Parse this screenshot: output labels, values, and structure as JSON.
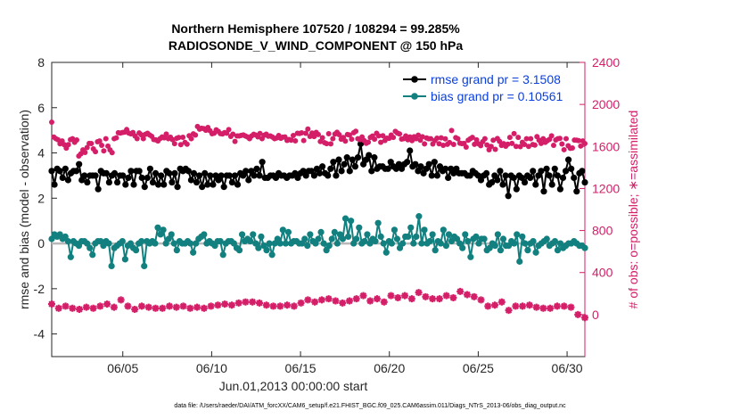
{
  "chart_data": {
    "type": "line",
    "title_line1": "Northern Hemisphere 107520 / 108294 = 99.285%",
    "title_line2": "RADIOSONDE_V_WIND_COMPONENT @ 150 hPa",
    "xlabel": "Jun.01,2013 00:00:00 start",
    "ylabel_left": "rmse and bias (model - observation)",
    "ylabel_right": "# of obs: o=possible; ∗=assimilated",
    "footnote": "data file: /Users/raeder/DAI/ATM_forcXX/CAM6_setup/f.e21.FHIST_BGC.f09_025.CAM6assim.011/Diags_NTrS_2013-06/obs_diag_output.nc",
    "x_ticks": [
      {
        "x": 5,
        "label": "06/05"
      },
      {
        "x": 10,
        "label": "06/10"
      },
      {
        "x": 15,
        "label": "06/15"
      },
      {
        "x": 20,
        "label": "06/20"
      },
      {
        "x": 25,
        "label": "06/25"
      },
      {
        "x": 30,
        "label": "06/30"
      }
    ],
    "y_left_ticks": [
      "8",
      "6",
      "4",
      "2",
      "0",
      "-2",
      "-4"
    ],
    "y_right_ticks": [
      "2400",
      "2000",
      "1600",
      "1200",
      "800",
      "400",
      "0"
    ],
    "xlim": [
      1.0,
      31.0
    ],
    "ylim_left": [
      -5,
      8
    ],
    "ylim_right": [
      -400,
      2400
    ],
    "zero_line": 0,
    "legend": [
      {
        "label": "rmse grand pr = 3.1508",
        "color": "#000000",
        "text_color": "#0a3fe0"
      },
      {
        "label": "bias grand pr = 0.10561",
        "color": "#138080",
        "text_color": "#0a3fe0"
      }
    ],
    "series": [
      {
        "name": "rmse",
        "axis": "left",
        "color": "#000000",
        "marker": "circle",
        "values": [
          3.2,
          2.6,
          3.3,
          3.2,
          2.9,
          3.3,
          2.8,
          3.1,
          3.2,
          3.2,
          3.5,
          2.8,
          3.0,
          2.7,
          3.0,
          3.0,
          3.0,
          2.4,
          3.2,
          3.1,
          3.1,
          2.7,
          3.0,
          3.1,
          2.7,
          3.0,
          3.0,
          2.6,
          2.9,
          3.2,
          2.6,
          3.2,
          3.2,
          2.9,
          2.5,
          2.9,
          3.3,
          2.7,
          3.1,
          2.6,
          3.0,
          2.6,
          3.2,
          3.1,
          2.7,
          3.1,
          2.5,
          3.3,
          3.2,
          3.3,
          3.2,
          2.8,
          3.1,
          2.7,
          3.0,
          2.5,
          3.1,
          2.6,
          3.0,
          2.6,
          3.0,
          2.8,
          3.0,
          2.5,
          3.0,
          3.0,
          2.7,
          3.0,
          2.6,
          3.1,
          3.0,
          3.2,
          2.8,
          3.2,
          3.0,
          3.3,
          3.0,
          3.6,
          2.9,
          2.9,
          3.0,
          3.0,
          2.9,
          3.1,
          3.0,
          3.0,
          2.9,
          3.0,
          3.0,
          3.1,
          2.9,
          3.1,
          3.2,
          3.0,
          3.2,
          3.2,
          3.0,
          3.3,
          3.1,
          3.4,
          3.1,
          3.0,
          3.3,
          3.6,
          3.0,
          3.7,
          3.2,
          3.5,
          3.8,
          3.2,
          3.7,
          3.4,
          3.8,
          4.4,
          3.5,
          3.7,
          3.9,
          3.2,
          3.8,
          3.3,
          3.4,
          3.4,
          3.3,
          3.3,
          3.6,
          3.4,
          3.3,
          3.5,
          3.3,
          3.5,
          3.6,
          4.1,
          3.4,
          3.5,
          3.2,
          3.4,
          3.1,
          3.3,
          3.5,
          3.0,
          3.6,
          3.0,
          3.4,
          3.2,
          3.3,
          2.9,
          3.3,
          3.1,
          3.3,
          3.1,
          3.1,
          3.1,
          3.0,
          3.0,
          3.2,
          3.1,
          3.0,
          2.8,
          3.0,
          3.1,
          2.6,
          2.7,
          3.0,
          2.8,
          3.2,
          2.6,
          3.0,
          2.1,
          3.0,
          2.9,
          2.4,
          3.0,
          2.9,
          2.7,
          3.0,
          2.9,
          3.2,
          2.6,
          3.0,
          3.2,
          2.3,
          3.3,
          3.0,
          2.6,
          3.3,
          3.0,
          2.4,
          2.9,
          3.2,
          3.7,
          3.3,
          2.9,
          2.3,
          3.1,
          3.2,
          2.7
        ]
      },
      {
        "name": "bias",
        "axis": "left",
        "color": "#138080",
        "marker": "circle",
        "values": [
          0.2,
          0.4,
          0.3,
          0.4,
          0.2,
          0.3,
          0.1,
          -0.6,
          0.1,
          0.0,
          -0.1,
          0.1,
          0.1,
          0.0,
          -0.2,
          -0.5,
          0.0,
          0.1,
          0.1,
          -0.1,
          0.1,
          0.0,
          -1.0,
          -0.2,
          -0.1,
          0.0,
          0.1,
          -0.7,
          -0.1,
          0.0,
          -0.2,
          -0.3,
          0.0,
          0.1,
          -1.0,
          0.1,
          0.0,
          0.1,
          0.0,
          0.7,
          0.4,
          0.6,
          0.0,
          0.2,
          0.4,
          0.0,
          -0.3,
          0.1,
          0.0,
          0.0,
          0.1,
          0.0,
          -0.4,
          0.0,
          0.2,
          0.3,
          0.4,
          0.0,
          0.1,
          0.0,
          -0.1,
          0.1,
          0.1,
          -0.5,
          0.0,
          0.1,
          0.1,
          0.0,
          -0.2,
          -0.3,
          0.4,
          0.1,
          0.2,
          0.1,
          0.4,
          0.0,
          -0.2,
          0.3,
          -0.1,
          -0.3,
          0.0,
          -0.5,
          0.0,
          0.2,
          0.0,
          0.6,
          0.0,
          0.5,
          0.0,
          0.1,
          0.1,
          0.0,
          0.0,
          0.2,
          -0.1,
          0.4,
          0.1,
          0.0,
          0.2,
          0.5,
          0.0,
          -0.3,
          -0.1,
          0.2,
          0.5,
          0.0,
          0.4,
          0.2,
          1.1,
          0.3,
          1.0,
          0.0,
          0.2,
          0.7,
          0.0,
          0.1,
          0.4,
          0.0,
          0.2,
          0.1,
          0.9,
          0.3,
          0.0,
          -0.4,
          0.1,
          0.0,
          0.6,
          0.2,
          -0.2,
          0.0,
          0.3,
          0.3,
          0.7,
          0.0,
          0.3,
          1.2,
          0.0,
          0.6,
          0.0,
          0.1,
          0.4,
          -0.3,
          0.1,
          0.0,
          0.6,
          -0.1,
          0.4,
          0.1,
          0.3,
          0.2,
          0.0,
          -0.2,
          0.4,
          0.1,
          -0.6,
          0.2,
          0.3,
          0.0,
          0.2,
          0.2,
          -0.3,
          -0.2,
          0.0,
          -0.1,
          0.4,
          -0.3,
          0.2,
          -0.1,
          -0.1,
          0.1,
          0.0,
          0.4,
          -0.8,
          0.3,
          0.0,
          -0.3,
          0.0,
          0.1,
          -0.4,
          -0.1,
          0.0,
          0.1,
          0.2,
          -0.1,
          0.0,
          0.1,
          -0.3,
          0.0,
          -0.2,
          -0.1,
          0.0,
          0.0,
          0.1,
          0.0,
          -0.1,
          -0.1,
          -0.2
        ]
      },
      {
        "name": "possible",
        "axis": "right",
        "color": "#d41e68",
        "marker": "circle",
        "values": [
          1831,
          1689,
          1674,
          1664,
          1626,
          1652,
          1617,
          1584,
          1617,
          1665,
          1674,
          1640,
          1662,
          1509,
          1530,
          1567,
          1543,
          1590,
          1629,
          1628,
          1577,
          1550,
          1645,
          1652,
          1611,
          1558,
          1674,
          1603,
          1567,
          1541,
          1674,
          1682,
          1731,
          1728,
          1733,
          1736,
          1761,
          1728,
          1720,
          1733,
          1700,
          1675,
          1729,
          1712,
          1674,
          1716,
          1725,
          1710,
          1697,
          1666,
          1663,
          1652,
          1674,
          1690,
          1682,
          1718,
          1674,
          1688,
          1665,
          1627,
          1678,
          1685,
          1617,
          1687,
          1639,
          1622,
          1702,
          1674,
          1720,
          1708,
          1790,
          1765,
          1773,
          1770,
          1754,
          1781,
          1750,
          1721,
          1727,
          1758,
          1744,
          1722,
          1719,
          1732,
          1727,
          1760,
          1696,
          1717,
          1648,
          1700,
          1700,
          1705,
          1710,
          1700,
          1690,
          1674,
          1700,
          1716,
          1709,
          1692,
          1723,
          1674,
          1706,
          1717,
          1698,
          1700,
          1689,
          1674,
          1681,
          1704,
          1678,
          1688,
          1690,
          1658,
          1666,
          1660,
          1704,
          1653,
          1725,
          1723,
          1730,
          1656,
          1725,
          1766,
          1696,
          1728,
          1695,
          1734,
          1714,
          1647,
          1683,
          1636,
          1627,
          1721,
          1625,
          1674,
          1718,
          1735,
          1713,
          1669,
          1685,
          1651,
          1714,
          1710,
          1669,
          1731,
          1745,
          1674,
          1665,
          1690,
          1657,
          1630,
          1641,
          1686,
          1699,
          1669,
          1725,
          1701,
          1640,
          1702,
          1656,
          1679,
          1678,
          1708,
          1686,
          1744,
          1728,
          1719,
          1670,
          1674,
          1700,
          1664,
          1690,
          1655,
          1693,
          1674,
          1707,
          1660,
          1693,
          1625,
          1681,
          1673,
          1674,
          1624,
          1656,
          1679,
          1626,
          1682,
          1611,
          1672,
          1620,
          1637,
          1752,
          1619,
          1684,
          1673,
          1631,
          1627,
          1629,
          1594,
          1660,
          1674,
          1686,
          1620,
          1663,
          1625,
          1608,
          1646,
          1674,
          1614,
          1568,
          1600,
          1660,
          1573,
          1676,
          1649,
          1610,
          1627,
          1602,
          1622,
          1686,
          1629,
          1722,
          1600,
          1686,
          1598,
          1640,
          1619,
          1674,
          1600,
          1674,
          1618,
          1613,
          1694,
          1660,
          1629,
          1674,
          1640,
          1655,
          1667,
          1701,
          1611,
          1662,
          1674,
          1677,
          1624,
          1569,
          1674,
          1607,
          1582,
          1585,
          1661,
          1660,
          1655,
          1604,
          1652,
          1628
        ]
      },
      {
        "name": "assimilated",
        "axis": "right",
        "color": "#d41e68",
        "marker": "star",
        "values": [
          100,
          60,
          80,
          60,
          50,
          70,
          60,
          80,
          100,
          70,
          140,
          80,
          50,
          80,
          70,
          60,
          60,
          80,
          70,
          80,
          60,
          70,
          60,
          80,
          90,
          100,
          90,
          110,
          120,
          120,
          110,
          90,
          80,
          80,
          90,
          80,
          110,
          140,
          120,
          140,
          150,
          130,
          110,
          130,
          150,
          180,
          130,
          150,
          120,
          180,
          160,
          180,
          150,
          210,
          170,
          150,
          150,
          180,
          160,
          220,
          190,
          170,
          140,
          80,
          90,
          120,
          40,
          80,
          80,
          90,
          70,
          60,
          60,
          80,
          80,
          70,
          0,
          -30
        ]
      }
    ]
  }
}
